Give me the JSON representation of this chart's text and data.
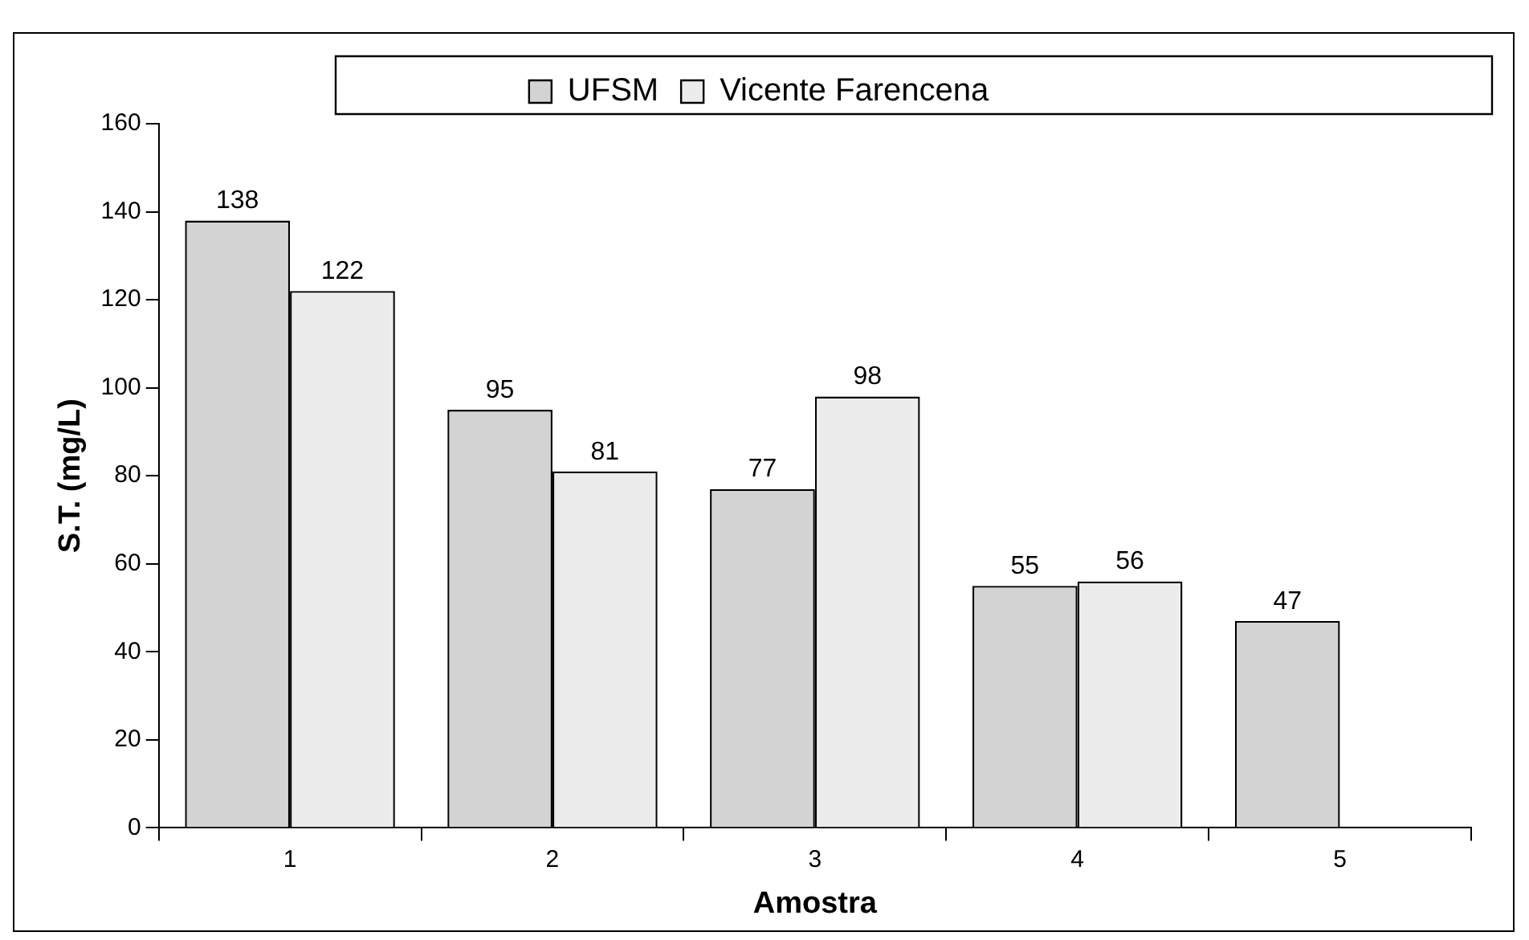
{
  "chart_data": {
    "type": "bar",
    "xlabel": "Amostra",
    "ylabel": "S.T. (mg/L)",
    "categories": [
      "1",
      "2",
      "3",
      "4",
      "5"
    ],
    "series": [
      {
        "name": "UFSM",
        "color": "#d3d3d3",
        "values": [
          138,
          95,
          77,
          55,
          47
        ]
      },
      {
        "name": "Vicente Farencena",
        "color": "#ececec",
        "values": [
          122,
          81,
          98,
          56,
          null
        ]
      }
    ],
    "ylim": [
      0,
      160
    ],
    "yticks": [
      0,
      20,
      40,
      60,
      80,
      100,
      120,
      140,
      160
    ],
    "grid": false,
    "legend": "top",
    "data_labels": true
  }
}
